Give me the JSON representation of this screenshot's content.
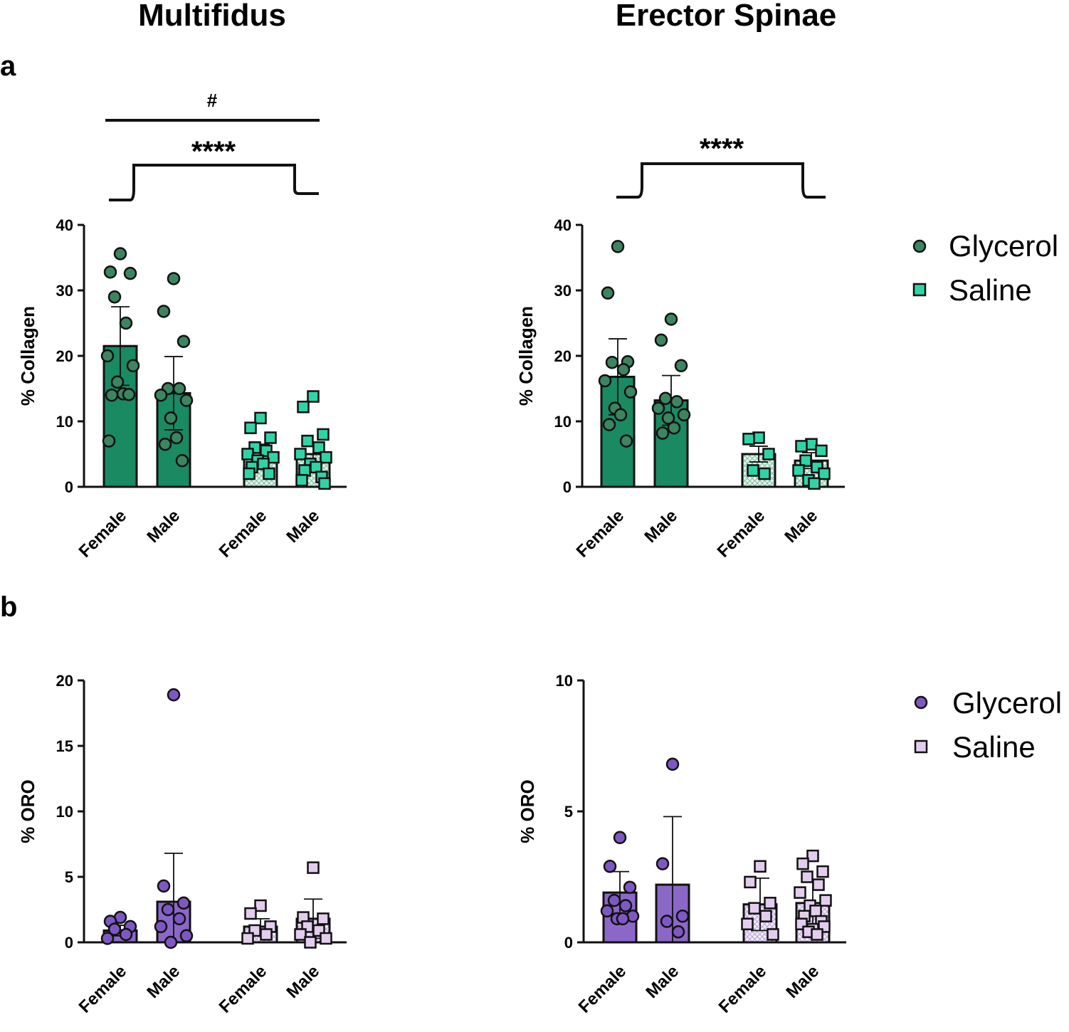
{
  "columns": {
    "left_title": "Multifidus",
    "right_title": "Erector Spinae"
  },
  "panel_labels": {
    "a": "a",
    "b": "b"
  },
  "colors": {
    "green_bar": "#1a8a62",
    "green_marker": "#3c8560",
    "teal_marker": "#2fd4a6",
    "saline_green_fill": "#c7e6d8",
    "purple_bar": "#8b68c8",
    "purple_marker": "#7e58c2",
    "lavender_marker": "#e2cdee",
    "saline_purple_fill": "#e8def2"
  },
  "legends": {
    "collagen": {
      "glycerol": "Glycerol",
      "saline": "Saline"
    },
    "oro": {
      "glycerol": "Glycerol",
      "saline": "Saline"
    }
  },
  "chart_data": [
    {
      "id": "multifidus-collagen",
      "type": "bar",
      "ylabel": "% Collagen",
      "ylim": [
        0,
        40
      ],
      "yticks": [
        "0",
        "10",
        "20",
        "30",
        "40"
      ],
      "categories": [
        "Female",
        "Male",
        "Female",
        "Male"
      ],
      "groups": [
        "Glycerol",
        "Glycerol",
        "Saline",
        "Saline"
      ],
      "means": [
        21.5,
        14.3,
        5.2,
        5.0
      ],
      "errors": [
        6.0,
        5.6,
        1.3,
        1.7
      ],
      "points": [
        [
          35.6,
          32.8,
          32.6,
          29.0,
          25.0,
          20.0,
          18.5,
          16.0,
          14.2,
          14.0,
          14.1,
          7.0
        ],
        [
          31.8,
          26.8,
          22.2,
          15.0,
          15.0,
          14.0,
          13.2,
          10.5,
          7.5,
          6.5,
          4.0
        ],
        [
          10.5,
          9.0,
          7.5,
          6.0,
          5.5,
          5.0,
          4.5,
          4.0,
          3.5,
          3.0,
          2.0,
          2.0
        ],
        [
          13.8,
          12.2,
          8.0,
          7.0,
          6.0,
          5.0,
          4.5,
          3.5,
          3.0,
          2.5,
          1.5,
          1.0,
          0.5
        ]
      ],
      "significance": {
        "hash": "#",
        "stars": "****"
      }
    },
    {
      "id": "erector-collagen",
      "type": "bar",
      "ylabel": "% Collagen",
      "ylim": [
        0,
        40
      ],
      "yticks": [
        "0",
        "10",
        "20",
        "30",
        "40"
      ],
      "categories": [
        "Female",
        "Male",
        "Female",
        "Male"
      ],
      "groups": [
        "Glycerol",
        "Glycerol",
        "Saline",
        "Saline"
      ],
      "means": [
        16.8,
        13.2,
        5.0,
        4.0
      ],
      "errors": [
        5.8,
        3.8,
        1.2,
        1.2
      ],
      "points": [
        [
          36.7,
          29.6,
          19.1,
          19.0,
          17.9,
          16.2,
          14.5,
          12.0,
          11.0,
          9.5,
          7.0
        ],
        [
          25.6,
          22.4,
          18.5,
          13.5,
          13.0,
          12.0,
          11.0,
          10.5,
          9.0,
          8.2
        ],
        [
          7.5,
          7.3,
          5.0,
          2.5,
          2.0
        ],
        [
          6.5,
          6.2,
          5.5,
          4.0,
          3.0,
          2.5,
          2.0,
          1.0,
          0.5
        ]
      ],
      "significance": {
        "stars": "****"
      }
    },
    {
      "id": "multifidus-oro",
      "type": "bar",
      "ylabel": "% ORO",
      "ylim": [
        0,
        20
      ],
      "yticks": [
        "0",
        "5",
        "10",
        "15",
        "20"
      ],
      "categories": [
        "Female",
        "Male",
        "Female",
        "Male"
      ],
      "groups": [
        "Glycerol",
        "Glycerol",
        "Saline",
        "Saline"
      ],
      "means": [
        0.9,
        3.1,
        1.2,
        1.8
      ],
      "errors": [
        0.4,
        3.7,
        0.6,
        1.5
      ],
      "points": [
        [
          1.9,
          1.6,
          1.2,
          1.0,
          0.6,
          0.3
        ],
        [
          18.9,
          4.3,
          3.0,
          2.5,
          1.8,
          1.2,
          0.5,
          0.0
        ],
        [
          2.8,
          2.2,
          1.2,
          0.9,
          0.6,
          0.3
        ],
        [
          5.7,
          1.9,
          1.8,
          1.2,
          0.9,
          0.6,
          0.3,
          0.0
        ]
      ]
    },
    {
      "id": "erector-oro",
      "type": "bar",
      "ylabel": "% ORO",
      "ylim": [
        0,
        10
      ],
      "yticks": [
        "0",
        "5",
        "10"
      ],
      "categories": [
        "Female",
        "Male",
        "Female",
        "Male"
      ],
      "groups": [
        "Glycerol",
        "Glycerol",
        "Saline",
        "Saline"
      ],
      "means": [
        1.9,
        2.2,
        1.45,
        1.5
      ],
      "errors": [
        0.8,
        2.6,
        1.0,
        0.9
      ],
      "points": [
        [
          4.0,
          2.9,
          2.1,
          1.6,
          1.4,
          1.2,
          1.0,
          0.9,
          0.9
        ],
        [
          6.8,
          3.0,
          1.0,
          0.8,
          0.4
        ],
        [
          2.9,
          2.3,
          1.5,
          1.3,
          1.0,
          0.7,
          0.3
        ],
        [
          3.3,
          3.0,
          2.7,
          2.5,
          2.2,
          1.9,
          1.6,
          1.4,
          1.2,
          1.0,
          0.8,
          0.7,
          0.6,
          0.5,
          0.4,
          0.3
        ]
      ]
    }
  ]
}
